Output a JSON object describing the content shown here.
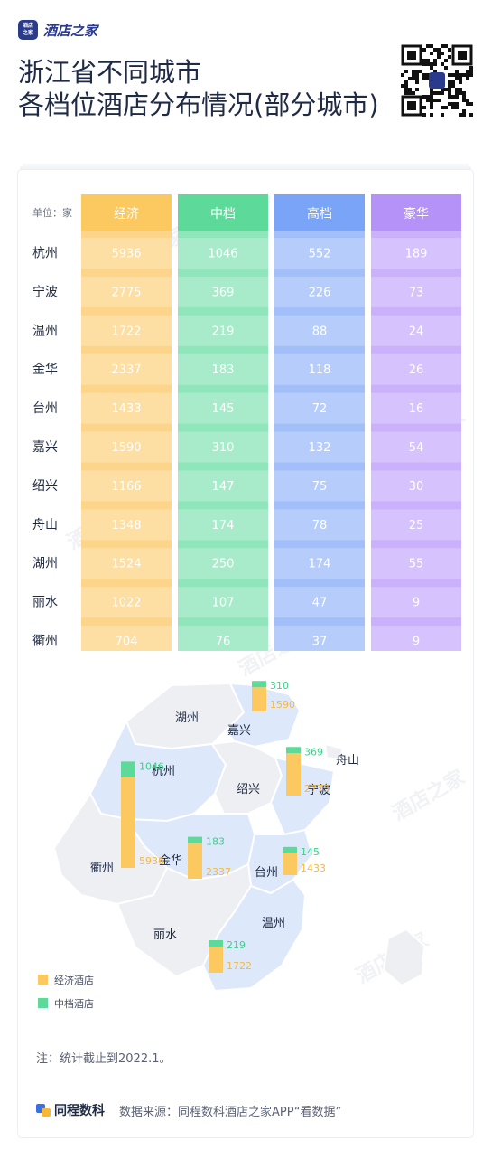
{
  "brand": {
    "badge_line1": "酒店",
    "badge_line2": "之家",
    "name": "酒店之家"
  },
  "title": {
    "line1": "浙江省不同城市",
    "line2": "各档位酒店分布情况(部分城市)"
  },
  "colors": {
    "economy": "#fdd58a",
    "economy_head": "#fcc860",
    "midscale": "#8fe6bb",
    "midscale_head": "#5dd99a",
    "upscale": "#a2bffa",
    "upscale_head": "#7aa4f7",
    "luxury": "#cbb1fb",
    "luxury_head": "#b592f7",
    "map_fill": "#dde8fb",
    "map_gray": "#eeeff2"
  },
  "chart_data": [
    {
      "type": "table",
      "unit_label": "单位：家",
      "columns": [
        "经济",
        "中档",
        "高档",
        "豪华"
      ],
      "rows": [
        {
          "city": "杭州",
          "values": [
            5936,
            1046,
            552,
            189
          ]
        },
        {
          "city": "宁波",
          "values": [
            2775,
            369,
            226,
            73
          ]
        },
        {
          "city": "温州",
          "values": [
            1722,
            219,
            88,
            24
          ]
        },
        {
          "city": "金华",
          "values": [
            2337,
            183,
            118,
            26
          ]
        },
        {
          "city": "台州",
          "values": [
            1433,
            145,
            72,
            16
          ]
        },
        {
          "city": "嘉兴",
          "values": [
            1590,
            310,
            132,
            54
          ]
        },
        {
          "city": "绍兴",
          "values": [
            1166,
            147,
            75,
            30
          ]
        },
        {
          "city": "舟山",
          "values": [
            1348,
            174,
            78,
            25
          ]
        },
        {
          "city": "湖州",
          "values": [
            1524,
            250,
            174,
            55
          ]
        },
        {
          "city": "丽水",
          "values": [
            1022,
            107,
            47,
            9
          ]
        },
        {
          "city": "衢州",
          "values": [
            704,
            76,
            37,
            9
          ]
        }
      ]
    },
    {
      "type": "bar",
      "stacked": true,
      "series": [
        {
          "name": "经济酒店",
          "values": [
            5936,
            1590,
            2775,
            2337,
            1433,
            1722
          ]
        },
        {
          "name": "中档酒店",
          "values": [
            1046,
            310,
            369,
            183,
            145,
            219
          ]
        }
      ],
      "categories": [
        "杭州",
        "嘉兴",
        "宁波",
        "金华",
        "台州",
        "温州"
      ],
      "map_labels": [
        "湖州",
        "嘉兴",
        "舟山",
        "杭州",
        "绍兴",
        "宁波",
        "金华",
        "衢州",
        "台州",
        "温州",
        "丽水"
      ],
      "legend": "bottom-left"
    }
  ],
  "note": "注：统计截止到2022.1。",
  "footer": {
    "logo": "同程数科",
    "source": "数据来源：同程数科酒店之家APP“看数据”"
  }
}
